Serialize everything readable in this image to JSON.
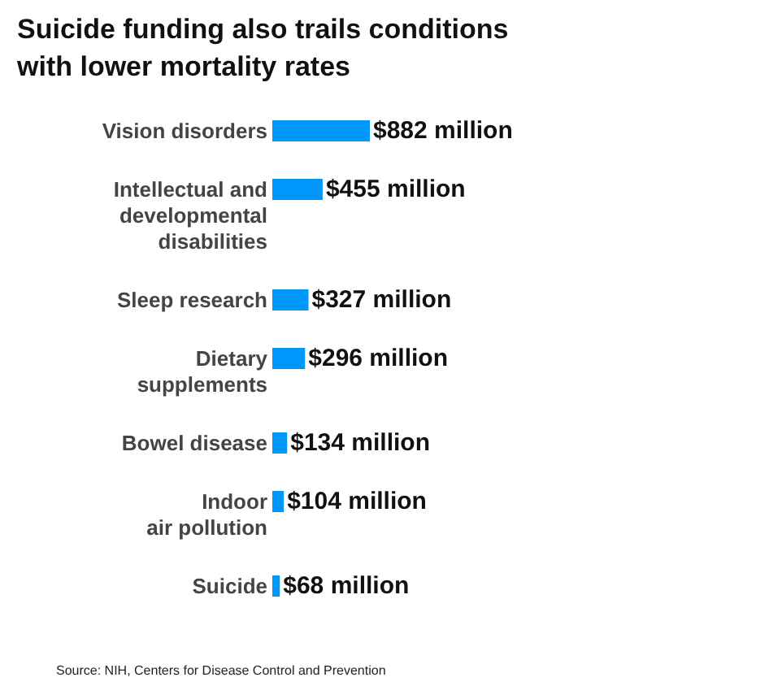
{
  "chart_data": {
    "type": "bar",
    "orientation": "horizontal",
    "title": "Suicide funding also trails conditions\nwith lower mortality rates",
    "categories": [
      "Vision disorders",
      "Intellectual and\ndevelopmental\ndisabilities",
      "Sleep research",
      "Dietary\nsupplements",
      "Bowel disease",
      "Indoor\nair pollution",
      "Suicide"
    ],
    "values": [
      882,
      455,
      327,
      296,
      134,
      104,
      68
    ],
    "color": "#0096fa",
    "value_labels": [
      "$882 million",
      "$455 million",
      "$327 million",
      "$296 million",
      "$134 million",
      "$104 million",
      "$68 million"
    ],
    "annotations": [
      "Source: NIH, Centers for Disease Control and Prevention"
    ]
  }
}
